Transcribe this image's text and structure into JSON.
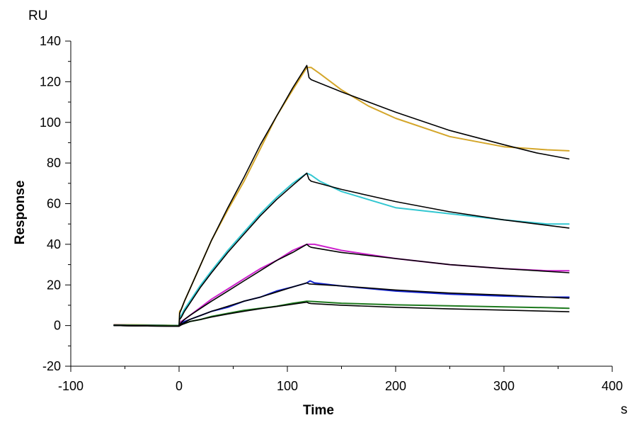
{
  "chart_data": {
    "type": "line",
    "xlabel": "Time",
    "ylabel": "Response",
    "x_unit": "s",
    "y_unit": "RU",
    "xlim": [
      -100,
      400
    ],
    "ylim": [
      -20,
      140
    ],
    "x_ticks": [
      -100,
      0,
      100,
      200,
      300,
      400
    ],
    "y_ticks": [
      -20,
      0,
      20,
      40,
      60,
      80,
      100,
      120,
      140
    ],
    "grid": false,
    "legend": "none",
    "series": [
      {
        "kind": "data",
        "color": "#D4A62A",
        "x": [
          -60,
          -30,
          0,
          0.5,
          2,
          5,
          10,
          20,
          30,
          45,
          60,
          75,
          90,
          105,
          118,
          122,
          130,
          150,
          175,
          200,
          250,
          300,
          340,
          360
        ],
        "y": [
          0.5,
          0.3,
          0,
          7,
          8,
          12,
          18,
          30,
          42,
          57,
          71,
          87,
          103,
          116,
          127,
          127,
          124,
          116,
          108,
          102,
          93,
          88,
          86.5,
          86
        ]
      },
      {
        "kind": "data",
        "color": "#33C7D1",
        "x": [
          -60,
          -30,
          0,
          0.5,
          2,
          5,
          10,
          20,
          30,
          45,
          60,
          75,
          90,
          105,
          118,
          122,
          130,
          150,
          175,
          200,
          250,
          300,
          340,
          360
        ],
        "y": [
          0.3,
          0.2,
          0,
          4,
          5,
          8,
          12,
          20,
          27,
          37,
          46,
          55,
          63,
          70,
          75,
          74,
          71,
          66,
          62,
          58,
          55,
          52,
          50,
          50
        ]
      },
      {
        "kind": "data",
        "color": "#CC22CC",
        "x": [
          -60,
          -30,
          0,
          2,
          5,
          10,
          20,
          30,
          45,
          60,
          75,
          90,
          105,
          118,
          125,
          150,
          200,
          250,
          300,
          340,
          360
        ],
        "y": [
          0.3,
          0.2,
          0,
          2,
          3,
          5,
          9,
          13,
          18,
          23,
          28,
          32,
          37,
          40,
          40,
          37,
          33,
          30,
          28,
          27,
          27
        ]
      },
      {
        "kind": "data",
        "color": "#1122CC",
        "x": [
          -60,
          -30,
          0,
          2,
          5,
          10,
          20,
          30,
          45,
          60,
          75,
          90,
          105,
          118,
          121,
          125,
          150,
          200,
          250,
          300,
          340,
          360
        ],
        "y": [
          0.2,
          0.1,
          0,
          1,
          2,
          3,
          5,
          7,
          9,
          12,
          14,
          17,
          19,
          21,
          22,
          21,
          19.5,
          17,
          15.5,
          14.5,
          14,
          14
        ]
      },
      {
        "kind": "data",
        "color": "#1E7A1E",
        "x": [
          -60,
          -30,
          0,
          2,
          5,
          10,
          20,
          30,
          45,
          60,
          75,
          90,
          105,
          118,
          125,
          150,
          200,
          250,
          300,
          340,
          360
        ],
        "y": [
          0.2,
          0.1,
          0,
          0.5,
          1,
          2,
          3,
          4.5,
          6,
          7.5,
          8.5,
          9.5,
          11,
          12,
          11.8,
          11,
          10.2,
          9.7,
          9.2,
          8.8,
          8.5
        ]
      },
      {
        "kind": "fit",
        "color": "#000000",
        "x": [
          -60,
          -30,
          0,
          0.5,
          2,
          5,
          10,
          20,
          30,
          45,
          60,
          75,
          90,
          105,
          118,
          120,
          122,
          150,
          200,
          250,
          300,
          330,
          360
        ],
        "y": [
          0,
          -0.2,
          -0.3,
          6,
          8,
          12,
          18,
          30,
          42,
          58,
          73,
          89,
          103,
          117,
          128,
          122,
          121,
          115,
          105,
          96,
          89,
          85,
          82
        ]
      },
      {
        "kind": "fit",
        "color": "#000000",
        "x": [
          -60,
          -30,
          0,
          0.5,
          2,
          5,
          10,
          20,
          30,
          45,
          60,
          75,
          90,
          105,
          118,
          120,
          122,
          150,
          200,
          250,
          300,
          330,
          360
        ],
        "y": [
          0,
          -0.2,
          -0.3,
          3,
          4,
          7,
          11,
          19,
          26,
          36,
          45,
          54,
          62,
          69,
          75,
          72,
          71,
          67,
          61,
          56,
          52,
          50,
          48
        ]
      },
      {
        "kind": "fit",
        "color": "#000000",
        "x": [
          -60,
          -30,
          0,
          2,
          5,
          10,
          20,
          30,
          45,
          60,
          75,
          90,
          105,
          118,
          120,
          122,
          150,
          200,
          250,
          300,
          360
        ],
        "y": [
          0,
          -0.2,
          -0.3,
          1.5,
          3,
          5,
          8.5,
          12,
          17,
          22,
          27,
          32,
          36,
          40,
          39,
          38.5,
          36,
          33,
          30,
          28,
          26
        ]
      },
      {
        "kind": "fit",
        "color": "#000000",
        "x": [
          -60,
          -30,
          0,
          2,
          5,
          10,
          20,
          30,
          45,
          60,
          75,
          90,
          105,
          118,
          120,
          122,
          150,
          200,
          250,
          300,
          360
        ],
        "y": [
          0,
          -0.2,
          -0.3,
          0.7,
          1.5,
          3,
          5,
          7,
          9.5,
          12,
          14,
          16.5,
          19,
          21,
          20.5,
          20.4,
          19.5,
          17.5,
          16,
          15,
          13.5
        ]
      },
      {
        "kind": "fit",
        "color": "#000000",
        "x": [
          -60,
          -30,
          0,
          2,
          5,
          10,
          20,
          30,
          45,
          60,
          75,
          90,
          105,
          118,
          120,
          122,
          150,
          200,
          250,
          300,
          360
        ],
        "y": [
          0,
          -0.2,
          -0.3,
          0.3,
          1,
          2,
          3,
          4.2,
          5.7,
          7,
          8.3,
          9.4,
          10.5,
          11.5,
          11,
          10.8,
          10,
          9,
          8.2,
          7.6,
          6.8
        ]
      }
    ]
  }
}
